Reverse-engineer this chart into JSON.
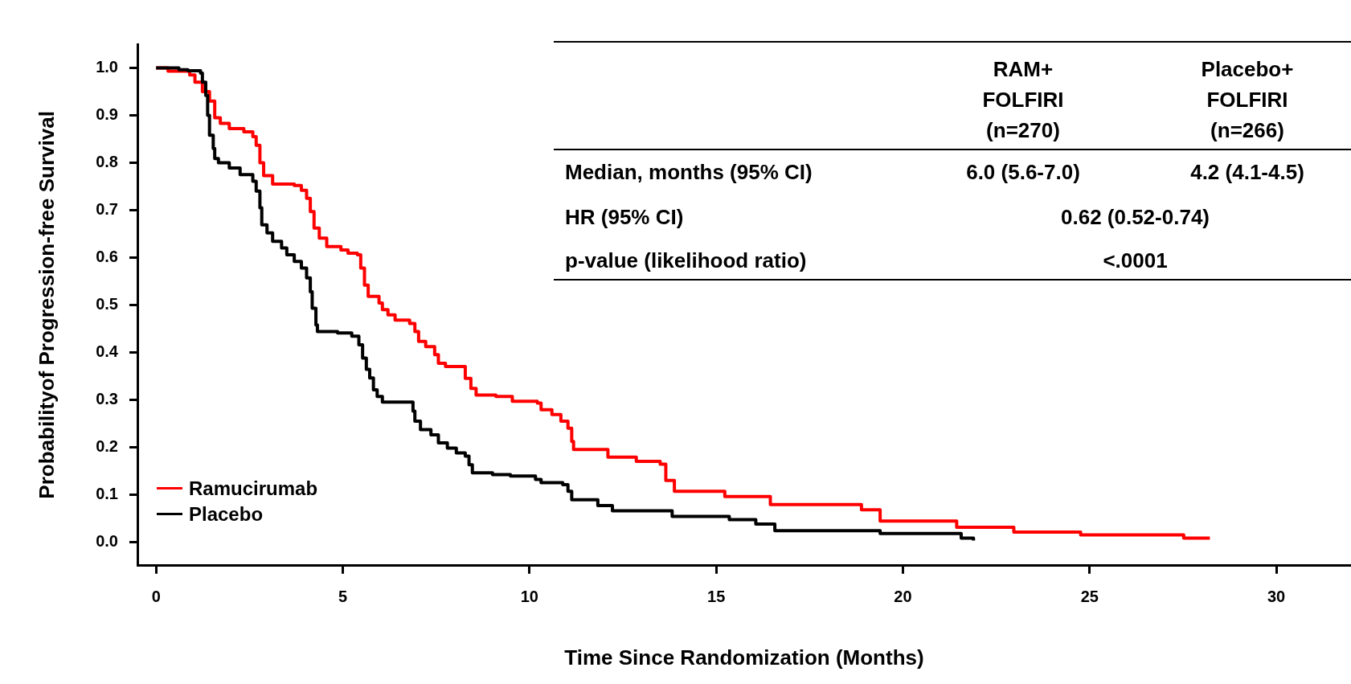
{
  "chart_data": {
    "type": "step",
    "xlabel": "Time Since Randomization (Months)",
    "ylabel": "Probabilityof Progression-free Survival",
    "xlim": [
      -0.5,
      32
    ],
    "ylim": [
      -0.05,
      1.05
    ],
    "xticks": [
      0,
      5,
      10,
      15,
      20,
      25,
      30
    ],
    "yticks": [
      {
        "value": 0,
        "label": "0.0"
      },
      {
        "value": 0.1,
        "label": "0.1"
      },
      {
        "value": 0.2,
        "label": "0.2"
      },
      {
        "value": 0.3,
        "label": "0.3"
      },
      {
        "value": 0.4,
        "label": "0.4"
      },
      {
        "value": 0.5,
        "label": "0.5"
      },
      {
        "value": 0.6,
        "label": "0.6"
      },
      {
        "value": 0.7,
        "label": "0.7"
      },
      {
        "value": 0.8,
        "label": "0.8"
      },
      {
        "value": 0.9,
        "label": "0.9"
      },
      {
        "value": 1,
        "label": "1.0"
      }
    ],
    "grid": false,
    "legend": "bottom left",
    "marker": "none",
    "line_style": "solid",
    "series": [
      {
        "name": "Ramucirumab",
        "color": "#ff0000",
        "x": [
          0,
          0.32,
          0.9,
          1.04,
          1.24,
          1.43,
          1.57,
          1.72,
          1.96,
          2.35,
          2.59,
          2.68,
          2.78,
          2.88,
          3.12,
          3.7,
          3.89,
          4.03,
          4.13,
          4.23,
          4.37,
          4.57,
          4.95,
          5.14,
          5.39,
          5.48,
          5.58,
          5.68,
          5.97,
          6.06,
          6.21,
          6.4,
          6.79,
          6.93,
          7.03,
          7.22,
          7.46,
          7.56,
          7.75,
          8.28,
          8.43,
          8.57,
          9.1,
          9.54,
          10.21,
          10.31,
          10.6,
          10.84,
          11.03,
          11.13,
          11.18,
          12.1,
          12.86,
          13.5,
          13.65,
          13.88,
          15.23,
          16.45,
          18.89,
          19.39,
          21.44,
          22.97,
          24.76,
          27.52,
          28.22
        ],
        "values": [
          1,
          0.993,
          0.985,
          0.97,
          0.95,
          0.93,
          0.895,
          0.883,
          0.872,
          0.865,
          0.855,
          0.837,
          0.8,
          0.773,
          0.755,
          0.752,
          0.742,
          0.725,
          0.697,
          0.662,
          0.641,
          0.623,
          0.616,
          0.609,
          0.606,
          0.578,
          0.542,
          0.518,
          0.504,
          0.49,
          0.479,
          0.468,
          0.461,
          0.444,
          0.423,
          0.412,
          0.395,
          0.377,
          0.37,
          0.345,
          0.324,
          0.31,
          0.307,
          0.297,
          0.293,
          0.279,
          0.269,
          0.255,
          0.24,
          0.212,
          0.195,
          0.179,
          0.17,
          0.164,
          0.13,
          0.107,
          0.096,
          0.079,
          0.068,
          0.044,
          0.031,
          0.021,
          0.015,
          0.008,
          0.008
        ]
      },
      {
        "name": "Placebo",
        "color": "#000000",
        "x": [
          0,
          0.61,
          0.85,
          1.19,
          1.24,
          1.33,
          1.38,
          1.43,
          1.53,
          1.57,
          1.67,
          1.96,
          2.25,
          2.59,
          2.68,
          2.78,
          2.83,
          2.97,
          3.12,
          3.36,
          3.5,
          3.7,
          3.89,
          4.03,
          4.13,
          4.18,
          4.28,
          4.32,
          4.86,
          5.24,
          5.43,
          5.53,
          5.63,
          5.72,
          5.82,
          5.92,
          6.06,
          6.88,
          6.93,
          7.08,
          7.36,
          7.56,
          7.8,
          8.04,
          8.28,
          8.38,
          8.47,
          9.01,
          9.49,
          10.16,
          10.31,
          10.89,
          11.03,
          11.13,
          11.83,
          12.22,
          13.82,
          15.35,
          16.06,
          16.57,
          19.39,
          21.56,
          21.89
        ],
        "values": [
          1,
          0.996,
          0.994,
          0.989,
          0.97,
          0.942,
          0.9,
          0.858,
          0.83,
          0.809,
          0.8,
          0.789,
          0.775,
          0.761,
          0.74,
          0.705,
          0.669,
          0.652,
          0.634,
          0.62,
          0.606,
          0.592,
          0.578,
          0.557,
          0.528,
          0.493,
          0.458,
          0.444,
          0.441,
          0.434,
          0.416,
          0.388,
          0.364,
          0.346,
          0.321,
          0.307,
          0.295,
          0.276,
          0.255,
          0.237,
          0.226,
          0.209,
          0.198,
          0.188,
          0.181,
          0.163,
          0.146,
          0.142,
          0.139,
          0.132,
          0.125,
          0.121,
          0.107,
          0.089,
          0.077,
          0.066,
          0.054,
          0.047,
          0.038,
          0.024,
          0.018,
          0.008,
          0.003
        ]
      }
    ],
    "annotations": [
      "RAM+\nFOLFIRI\n(n=270)",
      "Placebo+\nFOLFIRI\n(n=266)",
      "Median, months (95% CI)",
      "6.0 (5.6-7.0)",
      "4.2 (4.1-4.5)",
      "HR (95% CI)",
      "0.62 (0.52-0.74)",
      "p-value (likelihood ratio)",
      "<.0001"
    ]
  }
}
